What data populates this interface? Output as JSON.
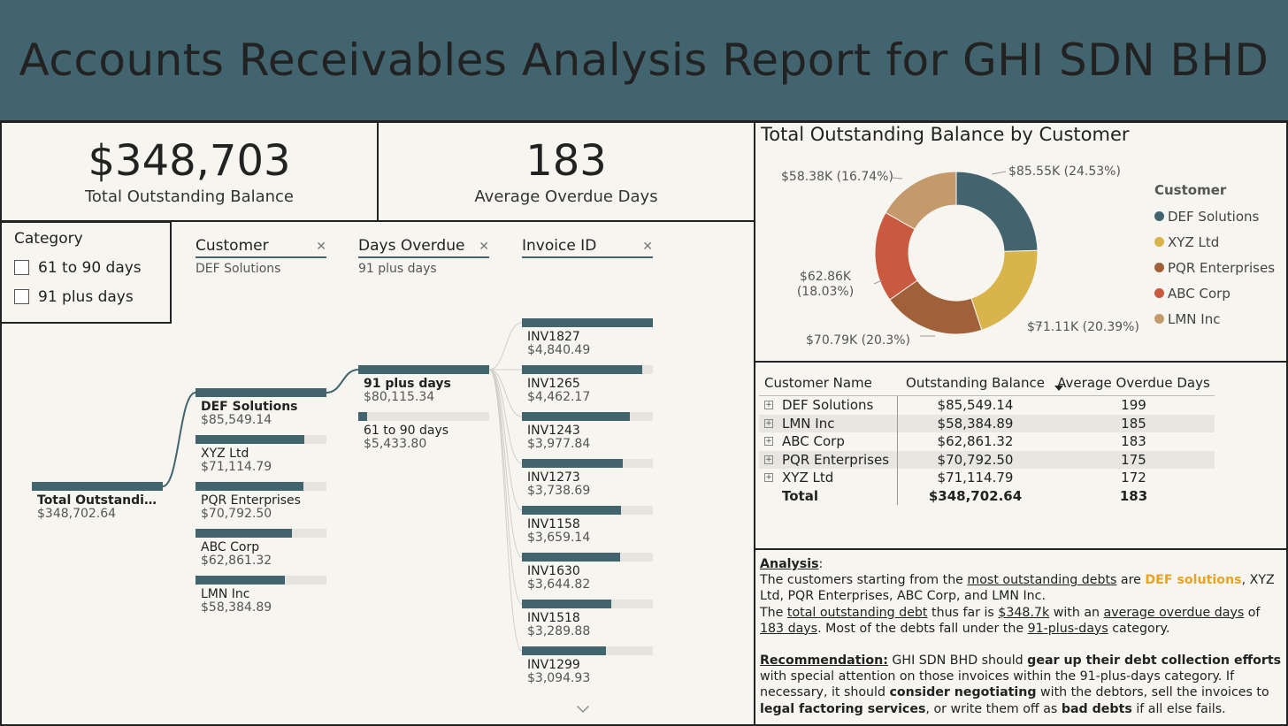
{
  "header": {
    "title": "Accounts Receivables Analysis Report for GHI SDN BHD"
  },
  "kpis": [
    {
      "value": "$348,703",
      "label": "Total Outstanding Balance"
    },
    {
      "value": "183",
      "label": "Average Overdue Days"
    }
  ],
  "slicer": {
    "title": "Category",
    "options": [
      {
        "label": "61 to 90 days",
        "checked": false
      },
      {
        "label": "91 plus days",
        "checked": false
      }
    ]
  },
  "decomp": {
    "levels": [
      {
        "name": "Customer",
        "selected": "DEF Solutions"
      },
      {
        "name": "Days Overdue",
        "selected": "91 plus days"
      },
      {
        "name": "Invoice ID",
        "selected": ""
      }
    ],
    "root": {
      "label": "Total Outstandin…",
      "value": "$348,702.64",
      "fill": 1.0
    },
    "customers": [
      {
        "label": "DEF Solutions",
        "value": "$85,549.14",
        "fill": 1.0
      },
      {
        "label": "XYZ Ltd",
        "value": "$71,114.79",
        "fill": 0.831
      },
      {
        "label": "PQR Enterprises",
        "value": "$70,792.50",
        "fill": 0.827
      },
      {
        "label": "ABC Corp",
        "value": "$62,861.32",
        "fill": 0.735
      },
      {
        "label": "LMN Inc",
        "value": "$58,384.89",
        "fill": 0.682
      }
    ],
    "days": [
      {
        "label": "91 plus days",
        "value": "$80,115.34",
        "fill": 1.0
      },
      {
        "label": "61 to 90 days",
        "value": "$5,433.80",
        "fill": 0.068
      }
    ],
    "invoices": [
      {
        "label": "INV1827",
        "value": "$4,840.49",
        "fill": 1.0
      },
      {
        "label": "INV1265",
        "value": "$4,462.17",
        "fill": 0.922
      },
      {
        "label": "INV1243",
        "value": "$3,977.84",
        "fill": 0.822
      },
      {
        "label": "INV1273",
        "value": "$3,738.69",
        "fill": 0.772
      },
      {
        "label": "INV1158",
        "value": "$3,659.14",
        "fill": 0.756
      },
      {
        "label": "INV1630",
        "value": "$3,644.82",
        "fill": 0.753
      },
      {
        "label": "INV1518",
        "value": "$3,289.88",
        "fill": 0.68
      },
      {
        "label": "INV1299",
        "value": "$3,094.93",
        "fill": 0.639
      }
    ]
  },
  "donut": {
    "title": "Total Outstanding Balance by Customer",
    "legend_title": "Customer",
    "slices": [
      {
        "name": "DEF Solutions",
        "value": 85549.14,
        "label": "$85.55K (24.53%)",
        "color": "#41646e"
      },
      {
        "name": "XYZ Ltd",
        "value": 71114.79,
        "label": "$71.11K (20.39%)",
        "color": "#d9b44a"
      },
      {
        "name": "PQR Enterprises",
        "value": 70792.5,
        "label": "$70.79K (20.3%)",
        "color": "#a0603a"
      },
      {
        "name": "ABC Corp",
        "value": 62861.32,
        "label": "$62.86K (18.03%)",
        "color": "#c95a40"
      },
      {
        "name": "LMN Inc",
        "value": 58384.89,
        "label": "$58.38K (16.74%)",
        "color": "#c49a6c"
      }
    ]
  },
  "table": {
    "headers": [
      "Customer Name",
      "Outstanding Balance",
      "Average Overdue Days"
    ],
    "rows": [
      [
        "DEF Solutions",
        "$85,549.14",
        "199"
      ],
      [
        "LMN Inc",
        "$58,384.89",
        "185"
      ],
      [
        "ABC Corp",
        "$62,861.32",
        "183"
      ],
      [
        "PQR Enterprises",
        "$70,792.50",
        "175"
      ],
      [
        "XYZ Ltd",
        "$71,114.79",
        "172"
      ]
    ],
    "total": [
      "Total",
      "$348,702.64",
      "183"
    ]
  },
  "analysis": {
    "heading": "Analysis",
    "p1a": "The customers starting from the ",
    "p1b": "most outstanding debts",
    "p1c": " are ",
    "p1d": "DEF solutions",
    "p1e": ", XYZ Ltd, PQR Enterprises, ABC Corp, and LMN Inc.",
    "p2a": "The ",
    "p2b": "total outstanding debt",
    "p2c": " thus far is ",
    "p2d": "$348.7k",
    "p2e": " with an ",
    "p2f": "average overdue days",
    "p2g": " of ",
    "p2h": "183 days",
    "p2i": ". Most of the debts fall under the ",
    "p2j": "91-plus-days",
    "p2k": " category.",
    "rec_heading": "Recommendation:",
    "r1": " GHI SDN BHD should ",
    "r2": "gear up their debt collection efforts",
    "r3": " with special attention on those invoices within the 91-plus-days category. If necessary, it should ",
    "r4": "consider negotiating",
    "r5": " with the debtors, sell the invoices to ",
    "r6": "legal factoring services",
    "r7": ", or write them off as ",
    "r8": "bad debts",
    "r9": " if all else fails."
  }
}
